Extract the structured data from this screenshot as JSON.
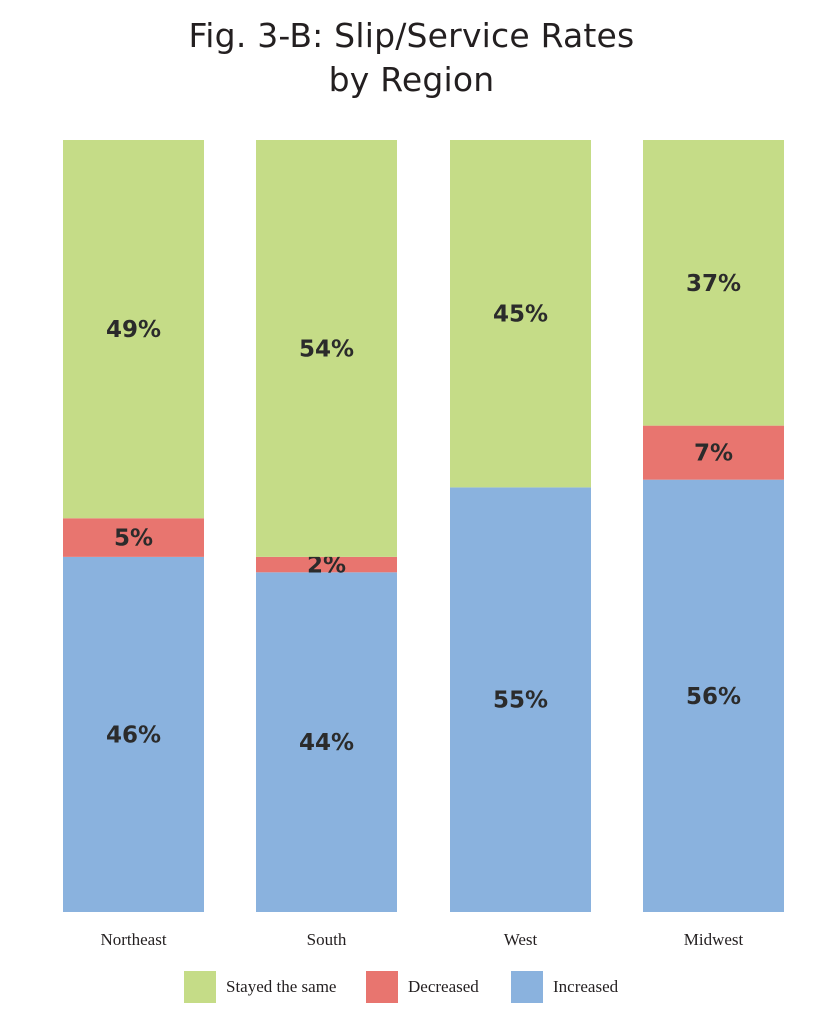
{
  "chart_data": {
    "type": "bar",
    "stacked": true,
    "title_lines": [
      "Fig. 3-B: Slip/Service Rates",
      "by Region"
    ],
    "categories": [
      "Northeast",
      "South",
      "West",
      "Midwest"
    ],
    "series": [
      {
        "name": "Increased",
        "values": [
          46,
          44,
          55,
          56
        ],
        "labels": [
          "46%",
          "44%",
          "55%",
          "56%"
        ],
        "color": "#8ab2de"
      },
      {
        "name": "Decreased",
        "values": [
          5,
          2,
          0,
          7
        ],
        "labels": [
          "5%",
          "2%",
          "",
          "7%"
        ],
        "color": "#e8756f"
      },
      {
        "name": "Stayed the same",
        "values": [
          49,
          54,
          45,
          37
        ],
        "labels": [
          "49%",
          "54%",
          "45%",
          "37%"
        ],
        "color": "#c5dc87"
      }
    ],
    "ylim": [
      0,
      100
    ],
    "legend": {
      "placement": "bottom",
      "order": [
        "Stayed the same",
        "Decreased",
        "Increased"
      ]
    },
    "grid": false
  }
}
